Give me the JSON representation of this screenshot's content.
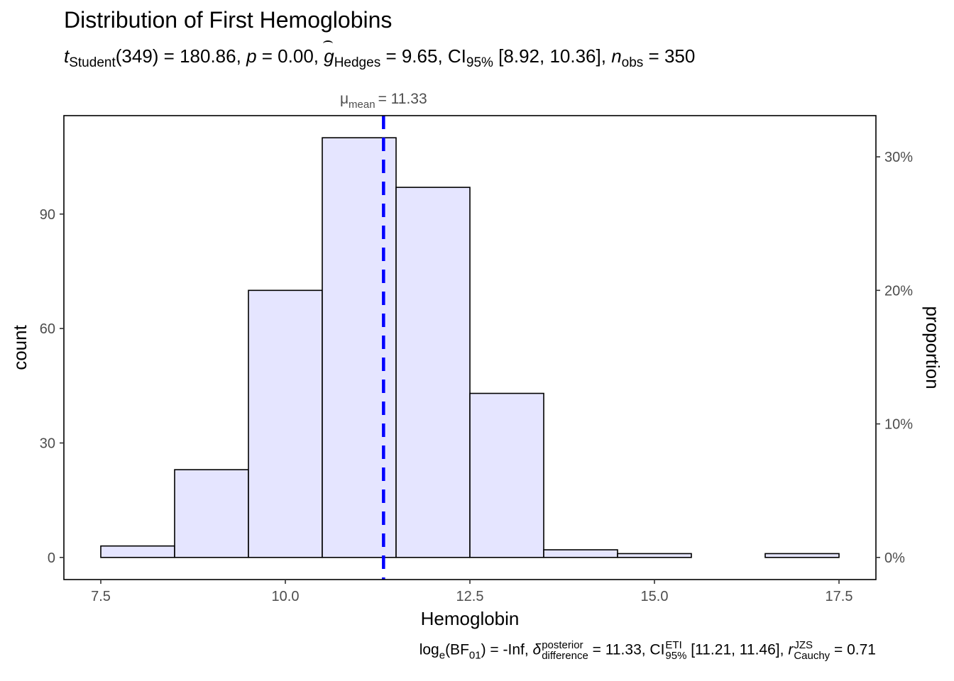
{
  "title": "Distribution of First Hemoglobins",
  "subtitle": {
    "t_sub": "Student",
    "df": "(349)",
    "t_val": "= 180.86,",
    "p_val": "= 0.00,",
    "g_sub": "Hedges",
    "g_val": "= 9.65, CI",
    "ci_sub": "95%",
    "ci_val": "[8.92, 10.36],",
    "n_sub": "obs",
    "n_val": "= 350"
  },
  "caption": {
    "log_base": "e",
    "bf_sub": "01",
    "bf_val": "= -Inf,",
    "delta_sup": "posterior",
    "delta_sub": "difference",
    "delta_val": "= 11.33, CI",
    "ci_sup": "ETI",
    "ci_sub": "95%",
    "ci_val": "[11.21, 11.46],",
    "r_sup": "JZS",
    "r_sub": "Cauchy",
    "r_val": "= 0.71"
  },
  "mean_label": {
    "mu": "μ",
    "sub": "mean",
    "value": "= 11.33"
  },
  "chart_data": {
    "type": "bar",
    "title": "Distribution of First Hemoglobins",
    "xlabel": "Hemoglobin",
    "ylabel": "count",
    "y2label": "proportion",
    "bin_width": 1,
    "bins": [
      {
        "from": 7.5,
        "to": 8.5,
        "count": 3
      },
      {
        "from": 8.5,
        "to": 9.5,
        "count": 23
      },
      {
        "from": 9.5,
        "to": 10.5,
        "count": 70
      },
      {
        "from": 10.5,
        "to": 11.5,
        "count": 110
      },
      {
        "from": 11.5,
        "to": 12.5,
        "count": 97
      },
      {
        "from": 12.5,
        "to": 13.5,
        "count": 43
      },
      {
        "from": 13.5,
        "to": 14.5,
        "count": 2
      },
      {
        "from": 14.5,
        "to": 15.5,
        "count": 1
      },
      {
        "from": 15.5,
        "to": 16.5,
        "count": 0
      },
      {
        "from": 16.5,
        "to": 17.5,
        "count": 1
      }
    ],
    "x_ticks": [
      "7.5",
      "10.0",
      "12.5",
      "15.0",
      "17.5"
    ],
    "y_ticks": [
      "0",
      "30",
      "60",
      "90"
    ],
    "y2_ticks": [
      "0%",
      "10%",
      "20%",
      "30%"
    ],
    "xlim": [
      7.0,
      18.0
    ],
    "ylim": [
      -5.8,
      115.8
    ],
    "n_total": 350,
    "mean_line": 11.33,
    "fill_color": "#e5e5ff",
    "line_color": "#0000ff",
    "grid": false
  }
}
